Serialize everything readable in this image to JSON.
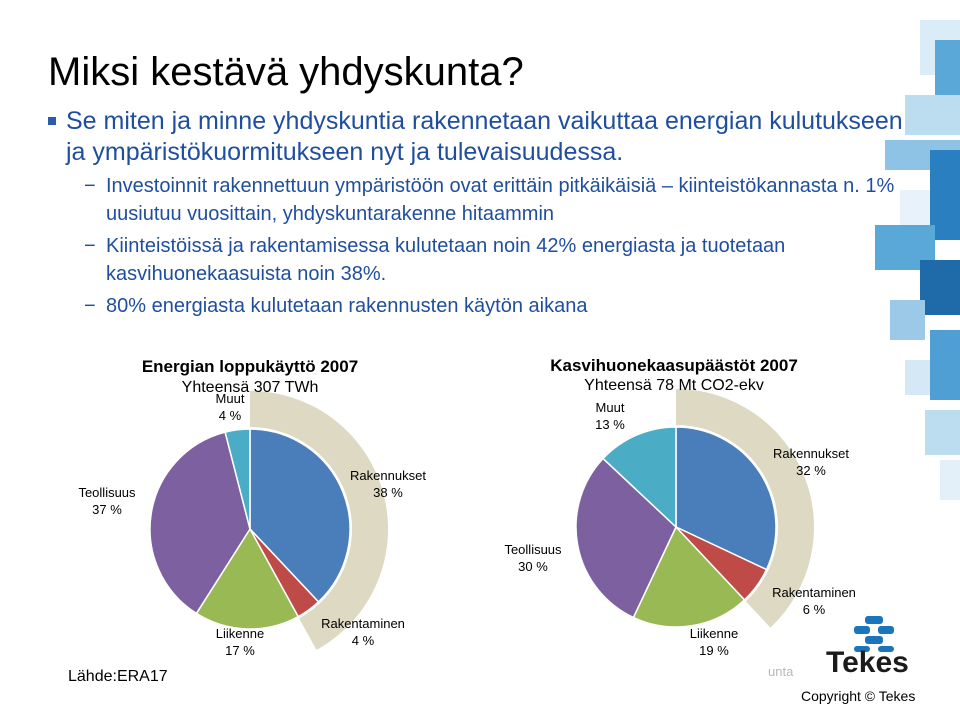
{
  "slide": {
    "title": "Miksi kestävä yhdyskunta?",
    "bullet_main": "Se miten ja minne yhdyskuntia rakennetaan vaikuttaa energian kulutukseen ja ympäristökuormitukseen nyt ja tulevaisuudessa.",
    "sub_bullets": [
      "Investoinnit rakennettuun ympäristöön ovat erittäin pitkäikäisiä – kiinteistökannasta n. 1% uusiutuu vuosittain, yhdyskuntarakenne hitaammin",
      "Kiinteistöissä ja rakentamisessa kulutetaan noin 42% energiasta ja tuotetaan kasvihuonekaasuista noin 38%.",
      "80% energiasta kulutetaan rakennusten käytön aikana"
    ],
    "dash": "−",
    "source": "Lähde:ERA17",
    "footer_fragment": "unta",
    "logo_text": "Tekes",
    "copyright": "Copyright © Tekes"
  },
  "colors": {
    "rakennukset": "#4a7ebb",
    "rakentaminen": "#be4b48",
    "liikenne": "#98b954",
    "teollisuus": "#7d60a0",
    "muut": "#4bacc6",
    "arc": "#ddd9c3",
    "bullet_text": "#1f4e9f",
    "logo_blue": "#1b75bb"
  },
  "chart_data": [
    {
      "type": "pie",
      "title": "Energian loppukäyttö 2007",
      "subtitle": "Yhteensä 307 TWh",
      "categories": [
        "Rakennukset",
        "Rakentaminen",
        "Liikenne",
        "Teollisuus",
        "Muut"
      ],
      "values": [
        38,
        4,
        17,
        37,
        4
      ],
      "unit": "%",
      "labels": {
        "Rakennukset": [
          "Rakennukset",
          "38 %"
        ],
        "Rakentaminen": [
          "Rakentaminen",
          "4 %"
        ],
        "Liikenne": [
          "Liikenne",
          "17 %"
        ],
        "Teollisuus": [
          "Teollisuus",
          "37 %"
        ],
        "Muut": [
          "Muut",
          "4 %"
        ]
      },
      "highlight": [
        "Rakennukset",
        "Rakentaminen"
      ]
    },
    {
      "type": "pie",
      "title": "Kasvihuonekaasupäästöt 2007",
      "subtitle": "Yhteensä 78 Mt CO2-ekv",
      "categories": [
        "Rakennukset",
        "Rakentaminen",
        "Liikenne",
        "Teollisuus",
        "Muut"
      ],
      "values": [
        32,
        6,
        19,
        30,
        13
      ],
      "unit": "%",
      "labels": {
        "Rakennukset": [
          "Rakennukset",
          "32 %"
        ],
        "Rakentaminen": [
          "Rakentaminen",
          "6 %"
        ],
        "Liikenne": [
          "Liikenne",
          "19 %"
        ],
        "Teollisuus": [
          "Teollisuus",
          "30 %"
        ],
        "Muut": [
          "Muut",
          "13 %"
        ]
      },
      "highlight": [
        "Rakennukset",
        "Rakentaminen"
      ]
    }
  ]
}
